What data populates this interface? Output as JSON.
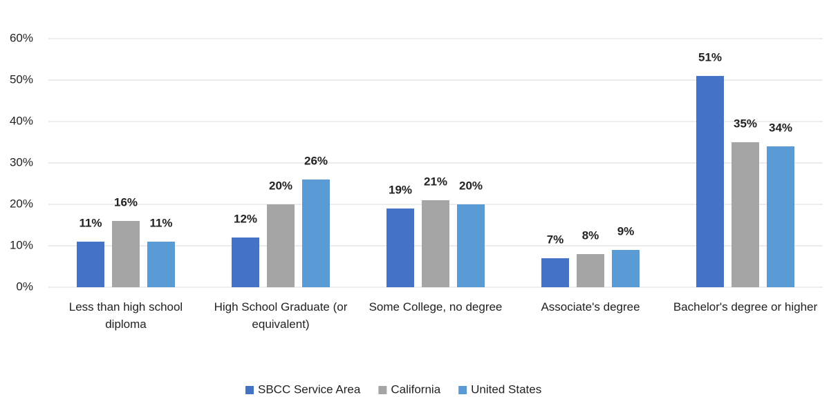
{
  "chart_data": {
    "type": "bar",
    "categories": [
      "Less than high school diploma",
      "High School Graduate (or equivalent)",
      "Some College, no degree",
      "Associate's degree",
      "Bachelor's degree or higher"
    ],
    "series": [
      {
        "name": "SBCC Service Area",
        "color": "#4472c4",
        "values": [
          11,
          12,
          19,
          7,
          51
        ],
        "value_labels": [
          "11%",
          "12%",
          "19%",
          "7%",
          "51%"
        ]
      },
      {
        "name": "California",
        "color": "#a5a5a5",
        "values": [
          16,
          20,
          21,
          8,
          35
        ],
        "value_labels": [
          "16%",
          "20%",
          "21%",
          "8%",
          "35%"
        ]
      },
      {
        "name": "United States",
        "color": "#5b9bd5",
        "values": [
          11,
          26,
          20,
          9,
          34
        ],
        "value_labels": [
          "11%",
          "26%",
          "20%",
          "9%",
          "34%"
        ]
      }
    ],
    "ylim": [
      0,
      66
    ],
    "yticks": [
      {
        "value": 0,
        "label": "0%"
      },
      {
        "value": 10,
        "label": "10%"
      },
      {
        "value": 20,
        "label": "20%"
      },
      {
        "value": 30,
        "label": "30%"
      },
      {
        "value": 40,
        "label": "40%"
      },
      {
        "value": 50,
        "label": "50%"
      },
      {
        "value": 60,
        "label": "60%"
      }
    ],
    "grid": true,
    "legend": "bottom"
  }
}
